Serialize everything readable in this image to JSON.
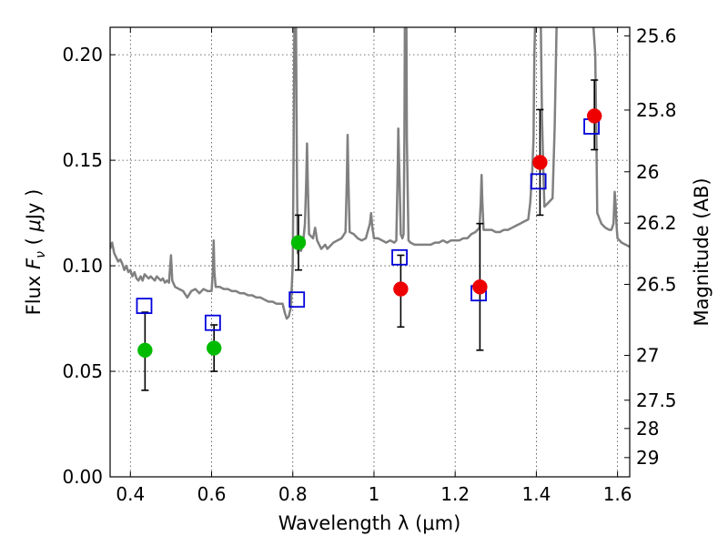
{
  "chart_data": {
    "type": "scatter",
    "xlabel": "Wavelength  λ (μm)",
    "ylabel": "Flux  F_ν  ( μJy )",
    "ylabel_parts": {
      "pre": "Flux  ",
      "sym": "F",
      "sub": "ν",
      "post": "  ( ",
      "mu": "μ",
      "unit": "Jy )"
    },
    "y2label": "Magnitude (AB)",
    "xlim": [
      0.35,
      1.63
    ],
    "ylim": [
      0.0,
      0.213
    ],
    "grid": true,
    "x_ticks": [
      {
        "value": 0.4,
        "label": "0.4"
      },
      {
        "value": 0.6,
        "label": "0.6"
      },
      {
        "value": 0.8,
        "label": "0.8"
      },
      {
        "value": 1.0,
        "label": "1"
      },
      {
        "value": 1.2,
        "label": "1.2"
      },
      {
        "value": 1.4,
        "label": "1.4"
      },
      {
        "value": 1.6,
        "label": "1.6"
      }
    ],
    "y_ticks": [
      {
        "value": 0.0,
        "label": "0.00"
      },
      {
        "value": 0.05,
        "label": "0.05"
      },
      {
        "value": 0.1,
        "label": "0.10"
      },
      {
        "value": 0.15,
        "label": "0.15"
      },
      {
        "value": 0.2,
        "label": "0.20"
      }
    ],
    "magnitude_ticks": [
      {
        "value": 25.6,
        "label": "25.6"
      },
      {
        "value": 25.8,
        "label": "25.8"
      },
      {
        "value": 26.0,
        "label": "26"
      },
      {
        "value": 26.2,
        "label": "26.2"
      },
      {
        "value": 26.5,
        "label": "26.5"
      },
      {
        "value": 27.0,
        "label": "27"
      },
      {
        "value": 27.5,
        "label": "27.5"
      },
      {
        "value": 28.0,
        "label": "28"
      },
      {
        "value": 29.0,
        "label": "29"
      }
    ],
    "series": [
      {
        "type": "line",
        "color": "#808080",
        "points": [
          [
            0.35,
            0.108
          ],
          [
            0.355,
            0.111
          ],
          [
            0.36,
            0.106
          ],
          [
            0.365,
            0.104
          ],
          [
            0.37,
            0.102
          ],
          [
            0.375,
            0.103
          ],
          [
            0.38,
            0.101
          ],
          [
            0.385,
            0.098
          ],
          [
            0.39,
            0.1
          ],
          [
            0.395,
            0.097
          ],
          [
            0.4,
            0.098
          ],
          [
            0.405,
            0.095
          ],
          [
            0.41,
            0.097
          ],
          [
            0.415,
            0.094
          ],
          [
            0.42,
            0.093
          ],
          [
            0.425,
            0.095
          ],
          [
            0.43,
            0.093
          ],
          [
            0.435,
            0.096
          ],
          [
            0.44,
            0.095
          ],
          [
            0.445,
            0.094
          ],
          [
            0.45,
            0.095
          ],
          [
            0.455,
            0.094
          ],
          [
            0.46,
            0.093
          ],
          [
            0.465,
            0.095
          ],
          [
            0.47,
            0.094
          ],
          [
            0.475,
            0.093
          ],
          [
            0.48,
            0.094
          ],
          [
            0.485,
            0.092
          ],
          [
            0.49,
            0.093
          ],
          [
            0.495,
            0.092
          ],
          [
            0.5,
            0.105
          ],
          [
            0.503,
            0.093
          ],
          [
            0.51,
            0.09
          ],
          [
            0.52,
            0.089
          ],
          [
            0.53,
            0.088
          ],
          [
            0.54,
            0.085
          ],
          [
            0.55,
            0.088
          ],
          [
            0.56,
            0.089
          ],
          [
            0.57,
            0.087
          ],
          [
            0.58,
            0.089
          ],
          [
            0.59,
            0.088
          ],
          [
            0.6,
            0.088
          ],
          [
            0.603,
            0.097
          ],
          [
            0.605,
            0.112
          ],
          [
            0.607,
            0.097
          ],
          [
            0.61,
            0.09
          ],
          [
            0.62,
            0.09
          ],
          [
            0.63,
            0.089
          ],
          [
            0.64,
            0.089
          ],
          [
            0.65,
            0.088
          ],
          [
            0.66,
            0.088
          ],
          [
            0.67,
            0.087
          ],
          [
            0.68,
            0.087
          ],
          [
            0.69,
            0.086
          ],
          [
            0.7,
            0.086
          ],
          [
            0.71,
            0.085
          ],
          [
            0.72,
            0.085
          ],
          [
            0.73,
            0.084
          ],
          [
            0.74,
            0.083
          ],
          [
            0.75,
            0.083
          ],
          [
            0.76,
            0.082
          ],
          [
            0.77,
            0.082
          ],
          [
            0.775,
            0.082
          ],
          [
            0.78,
            0.078
          ],
          [
            0.785,
            0.075
          ],
          [
            0.79,
            0.076
          ],
          [
            0.795,
            0.08
          ],
          [
            0.8,
            0.1
          ],
          [
            0.802,
            0.15
          ],
          [
            0.804,
            0.215
          ],
          [
            0.808,
            0.215
          ],
          [
            0.81,
            0.15
          ],
          [
            0.812,
            0.106
          ],
          [
            0.815,
            0.108
          ],
          [
            0.82,
            0.107
          ],
          [
            0.825,
            0.11
          ],
          [
            0.83,
            0.12
          ],
          [
            0.833,
            0.14
          ],
          [
            0.835,
            0.158
          ],
          [
            0.837,
            0.14
          ],
          [
            0.84,
            0.115
          ],
          [
            0.85,
            0.113
          ],
          [
            0.855,
            0.118
          ],
          [
            0.86,
            0.112
          ],
          [
            0.87,
            0.108
          ],
          [
            0.88,
            0.11
          ],
          [
            0.885,
            0.108
          ],
          [
            0.89,
            0.109
          ],
          [
            0.9,
            0.111
          ],
          [
            0.91,
            0.112
          ],
          [
            0.92,
            0.113
          ],
          [
            0.93,
            0.116
          ],
          [
            0.933,
            0.14
          ],
          [
            0.935,
            0.162
          ],
          [
            0.937,
            0.14
          ],
          [
            0.94,
            0.116
          ],
          [
            0.95,
            0.115
          ],
          [
            0.96,
            0.113
          ],
          [
            0.97,
            0.112
          ],
          [
            0.98,
            0.113
          ],
          [
            0.99,
            0.12
          ],
          [
            0.993,
            0.125
          ],
          [
            0.996,
            0.118
          ],
          [
            1.0,
            0.113
          ],
          [
            1.01,
            0.113
          ],
          [
            1.02,
            0.112
          ],
          [
            1.03,
            0.111
          ],
          [
            1.04,
            0.112
          ],
          [
            1.05,
            0.111
          ],
          [
            1.055,
            0.112
          ],
          [
            1.058,
            0.14
          ],
          [
            1.06,
            0.165
          ],
          [
            1.063,
            0.14
          ],
          [
            1.066,
            0.115
          ],
          [
            1.07,
            0.113
          ],
          [
            1.073,
            0.115
          ],
          [
            1.075,
            0.16
          ],
          [
            1.076,
            0.215
          ],
          [
            1.08,
            0.215
          ],
          [
            1.081,
            0.16
          ],
          [
            1.085,
            0.112
          ],
          [
            1.09,
            0.111
          ],
          [
            1.1,
            0.11
          ],
          [
            1.11,
            0.11
          ],
          [
            1.12,
            0.11
          ],
          [
            1.13,
            0.11
          ],
          [
            1.14,
            0.11
          ],
          [
            1.15,
            0.111
          ],
          [
            1.16,
            0.111
          ],
          [
            1.17,
            0.112
          ],
          [
            1.18,
            0.111
          ],
          [
            1.19,
            0.112
          ],
          [
            1.2,
            0.112
          ],
          [
            1.21,
            0.112
          ],
          [
            1.22,
            0.113
          ],
          [
            1.23,
            0.113
          ],
          [
            1.24,
            0.115
          ],
          [
            1.25,
            0.116
          ],
          [
            1.26,
            0.118
          ],
          [
            1.263,
            0.13
          ],
          [
            1.265,
            0.143
          ],
          [
            1.267,
            0.13
          ],
          [
            1.27,
            0.117
          ],
          [
            1.28,
            0.117
          ],
          [
            1.29,
            0.117
          ],
          [
            1.3,
            0.116
          ],
          [
            1.31,
            0.116
          ],
          [
            1.32,
            0.117
          ],
          [
            1.33,
            0.117
          ],
          [
            1.34,
            0.118
          ],
          [
            1.35,
            0.119
          ],
          [
            1.36,
            0.12
          ],
          [
            1.37,
            0.121
          ],
          [
            1.38,
            0.122
          ],
          [
            1.385,
            0.13
          ],
          [
            1.39,
            0.145
          ],
          [
            1.393,
            0.16
          ],
          [
            1.395,
            0.2
          ],
          [
            1.397,
            0.215
          ],
          [
            1.4,
            0.215
          ],
          [
            1.405,
            0.215
          ],
          [
            1.408,
            0.215
          ],
          [
            1.411,
            0.215
          ],
          [
            1.414,
            0.17
          ],
          [
            1.418,
            0.14
          ],
          [
            1.42,
            0.128
          ],
          [
            1.43,
            0.13
          ],
          [
            1.44,
            0.132
          ],
          [
            1.445,
            0.165
          ],
          [
            1.45,
            0.215
          ],
          [
            1.455,
            0.215
          ],
          [
            1.46,
            0.215
          ],
          [
            1.465,
            0.215
          ],
          [
            1.47,
            0.215
          ],
          [
            1.475,
            0.215
          ],
          [
            1.48,
            0.215
          ],
          [
            1.49,
            0.215
          ],
          [
            1.5,
            0.215
          ],
          [
            1.51,
            0.215
          ],
          [
            1.515,
            0.215
          ],
          [
            1.52,
            0.215
          ],
          [
            1.525,
            0.215
          ],
          [
            1.53,
            0.215
          ],
          [
            1.535,
            0.215
          ],
          [
            1.54,
            0.215
          ],
          [
            1.545,
            0.2
          ],
          [
            1.548,
            0.16
          ],
          [
            1.55,
            0.125
          ],
          [
            1.56,
            0.12
          ],
          [
            1.57,
            0.118
          ],
          [
            1.58,
            0.117
          ],
          [
            1.585,
            0.117
          ],
          [
            1.59,
            0.12
          ],
          [
            1.593,
            0.135
          ],
          [
            1.595,
            0.13
          ],
          [
            1.598,
            0.118
          ],
          [
            1.6,
            0.113
          ],
          [
            1.61,
            0.111
          ],
          [
            1.62,
            0.11
          ],
          [
            1.63,
            0.109
          ]
        ]
      },
      {
        "type": "errorbar",
        "color": "#000000",
        "points": [
          {
            "x": 0.436,
            "lo": 0.041,
            "hi": 0.078
          },
          {
            "x": 0.606,
            "lo": 0.05,
            "hi": 0.072
          },
          {
            "x": 0.814,
            "lo": 0.098,
            "hi": 0.124
          },
          {
            "x": 1.066,
            "lo": 0.071,
            "hi": 0.105
          },
          {
            "x": 1.261,
            "lo": 0.06,
            "hi": 0.12
          },
          {
            "x": 1.409,
            "lo": 0.124,
            "hi": 0.174
          },
          {
            "x": 1.543,
            "lo": 0.155,
            "hi": 0.188
          }
        ]
      },
      {
        "type": "scatter",
        "marker": "open-square",
        "color": "#0000dd",
        "points": [
          {
            "x": 0.434,
            "y": 0.081
          },
          {
            "x": 0.603,
            "y": 0.073
          },
          {
            "x": 0.81,
            "y": 0.084
          },
          {
            "x": 1.063,
            "y": 0.104
          },
          {
            "x": 1.258,
            "y": 0.087
          },
          {
            "x": 1.405,
            "y": 0.14
          },
          {
            "x": 1.536,
            "y": 0.166
          }
        ]
      },
      {
        "type": "scatter",
        "marker": "circle",
        "color": "#00bb00",
        "points": [
          {
            "x": 0.436,
            "y": 0.06
          },
          {
            "x": 0.606,
            "y": 0.061
          },
          {
            "x": 0.814,
            "y": 0.111
          }
        ]
      },
      {
        "type": "scatter",
        "marker": "circle",
        "color": "#ee0000",
        "points": [
          {
            "x": 1.066,
            "y": 0.089
          },
          {
            "x": 1.261,
            "y": 0.09
          },
          {
            "x": 1.409,
            "y": 0.149
          },
          {
            "x": 1.543,
            "y": 0.171
          }
        ]
      }
    ]
  }
}
